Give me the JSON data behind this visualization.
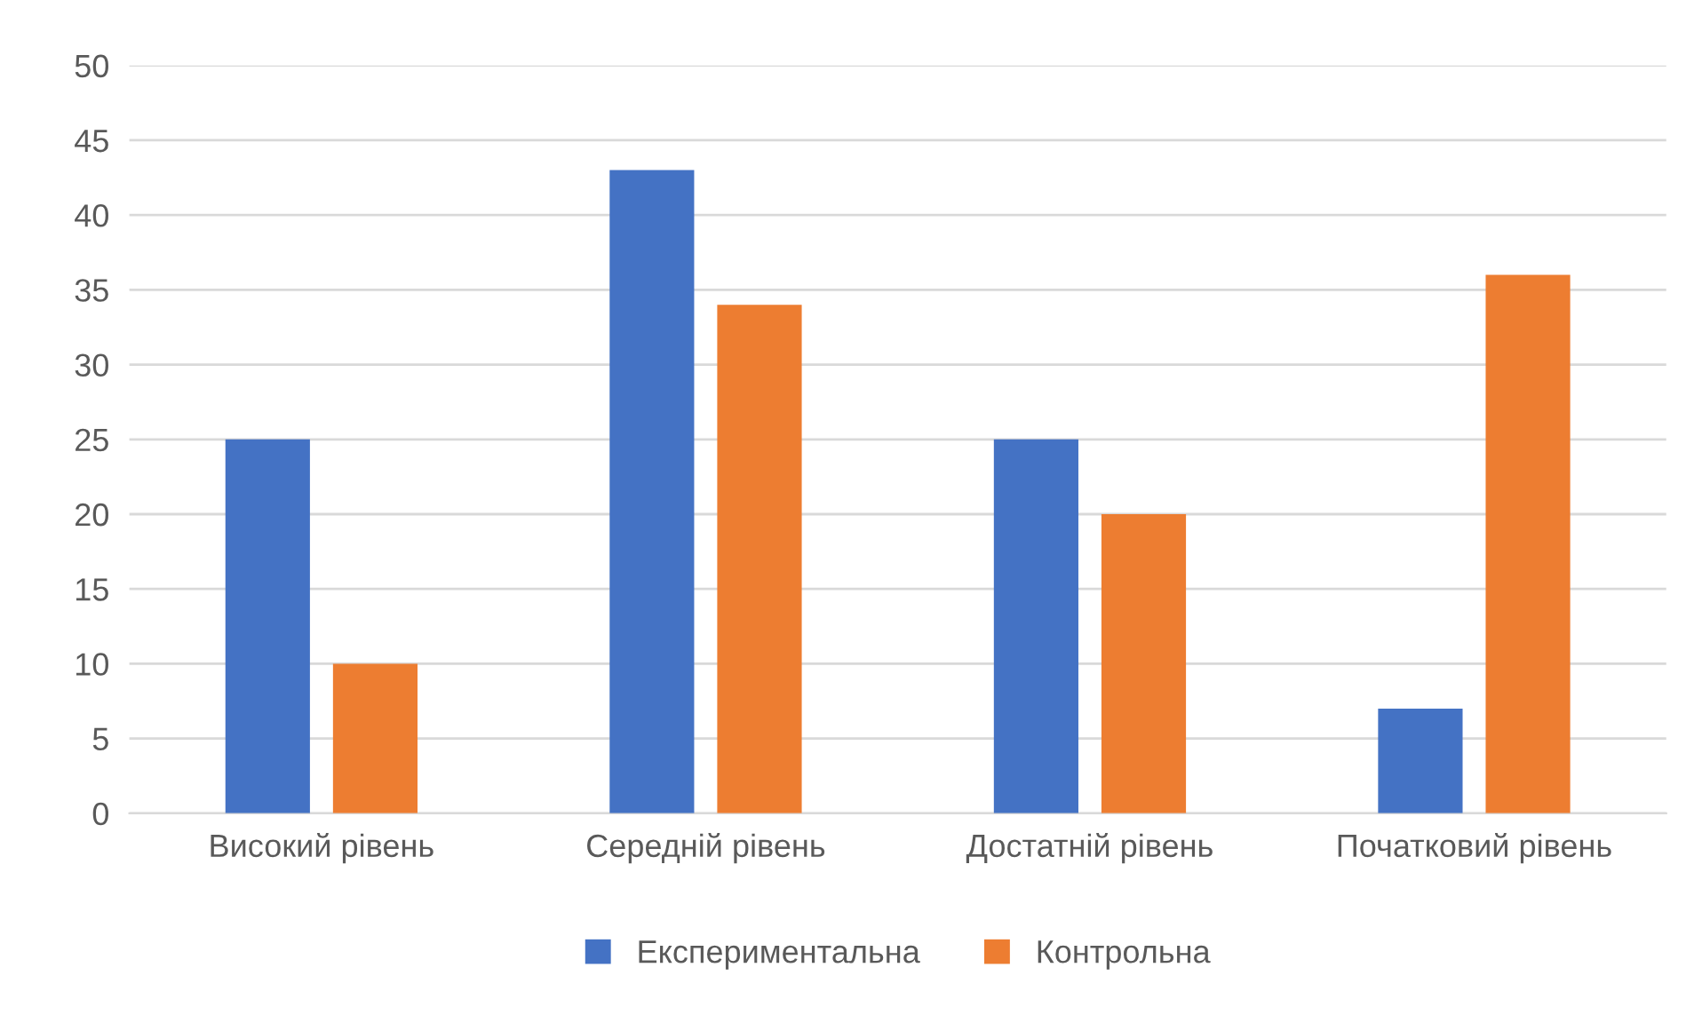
{
  "chart_data": {
    "type": "bar",
    "categories": [
      "Високий рівень",
      "Середній рівень",
      "Достатній рівень",
      "Початковий рівень"
    ],
    "series": [
      {
        "name": "Експериментальна",
        "color": "#4472c4",
        "values": [
          25,
          43,
          25,
          7
        ]
      },
      {
        "name": "Контрольна",
        "color": "#ed7d31",
        "values": [
          10,
          34,
          20,
          36
        ]
      }
    ],
    "ylim": [
      0,
      50
    ],
    "yticks": [
      0,
      5,
      10,
      15,
      20,
      25,
      30,
      35,
      40,
      45,
      50
    ],
    "grid": "y",
    "legend": "bottom"
  }
}
